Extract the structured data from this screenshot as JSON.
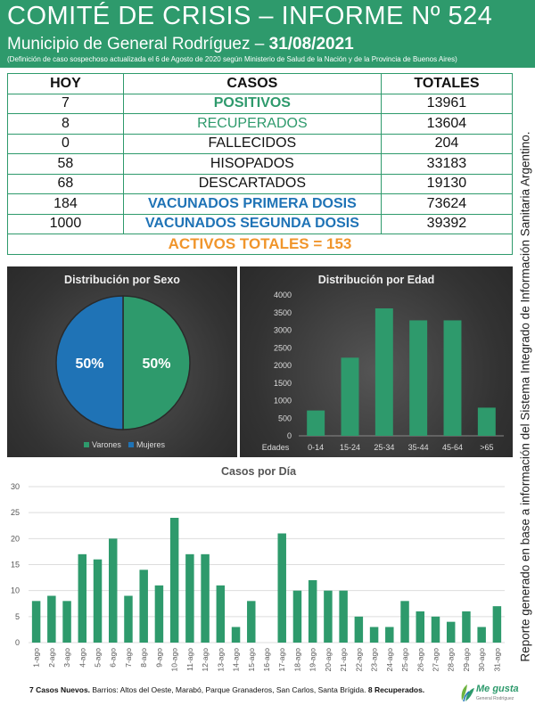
{
  "header": {
    "title": "COMITÉ DE CRISIS – INFORME Nº 524",
    "subtitle": "Municipio de General Rodríguez –",
    "date": "31/08/2021",
    "note": "(Definición de caso sospechoso actualizada el 6 de Agosto de 2020 según Ministerio de Salud de la Nación y de la Provincia de Buenos Aires)"
  },
  "table": {
    "headers": [
      "HOY",
      "CASOS",
      "TOTALES"
    ],
    "rows": [
      {
        "hoy": "7",
        "casos": "POSITIVOS",
        "totales": "13961"
      },
      {
        "hoy": "8",
        "casos": "RECUPERADOS",
        "totales": "13604"
      },
      {
        "hoy": "0",
        "casos": "FALLECIDOS",
        "totales": "204"
      },
      {
        "hoy": "58",
        "casos": "HISOPADOS",
        "totales": "33183"
      },
      {
        "hoy": "68",
        "casos": "DESCARTADOS",
        "totales": "19130"
      },
      {
        "hoy": "184",
        "casos": "VACUNADOS PRIMERA DOSIS",
        "totales": "73624"
      },
      {
        "hoy": "1000",
        "casos": "VACUNADOS SEGUNDA DOSIS",
        "totales": "39392"
      }
    ],
    "activos": "ACTIVOS TOTALES = 153"
  },
  "side_text": "Reporte generado en base a información del Sistema Integrado de Información Sanitaria Argentino.",
  "colors": {
    "green": "#2e9a6c",
    "blue": "#1f73b6",
    "orange": "#f0952b"
  },
  "chart_data": [
    {
      "type": "pie",
      "title": "Distribución por Sexo",
      "categories": [
        "Varones",
        "Mujeres"
      ],
      "values": [
        50,
        50
      ],
      "labels": [
        "50%",
        "50%"
      ],
      "colors": [
        "#2e9a6c",
        "#1f73b6"
      ],
      "legend": "bottom"
    },
    {
      "type": "bar",
      "title": "Distribución por Edad",
      "axis_label": "Edades",
      "categories": [
        "0-14",
        "15-24",
        "25-34",
        "35-44",
        "45-64",
        ">65"
      ],
      "values": [
        720,
        2220,
        3620,
        3280,
        3280,
        800
      ],
      "ylim": [
        0,
        4000
      ],
      "yticks": [
        0,
        500,
        1000,
        1500,
        2000,
        2500,
        3000,
        3500,
        4000
      ],
      "color": "#2e9a6c"
    },
    {
      "type": "bar",
      "title": "Casos por Día",
      "categories": [
        "1-ago",
        "2-ago",
        "3-ago",
        "4-ago",
        "5-ago",
        "6-ago",
        "7-ago",
        "8-ago",
        "9-ago",
        "10-ago",
        "11-ago",
        "12-ago",
        "13-ago",
        "14-ago",
        "15-ago",
        "16-ago",
        "17-ago",
        "18-ago",
        "19-ago",
        "20-ago",
        "21-ago",
        "22-ago",
        "23-ago",
        "24-ago",
        "25-ago",
        "26-ago",
        "27-ago",
        "28-ago",
        "29-ago",
        "30-ago",
        "31-ago"
      ],
      "values": [
        8,
        9,
        8,
        17,
        16,
        20,
        9,
        14,
        11,
        24,
        17,
        17,
        11,
        3,
        8,
        0,
        21,
        10,
        12,
        10,
        10,
        5,
        3,
        3,
        8,
        6,
        5,
        4,
        6,
        3,
        7
      ],
      "ylim": [
        0,
        30
      ],
      "yticks": [
        0,
        5,
        10,
        15,
        20,
        25,
        30
      ],
      "color": "#2e9a6c"
    }
  ],
  "footer": {
    "bold_prefix": "7 Casos Nuevos.",
    "text": " Barrios: Altos del Oeste, Marabó, Parque Granaderos, San Carlos, Santa Brígida. ",
    "bold_suffix": "8 Recuperados."
  },
  "logo": {
    "text": "Me gusta",
    "sub": "General Rodríguez"
  }
}
